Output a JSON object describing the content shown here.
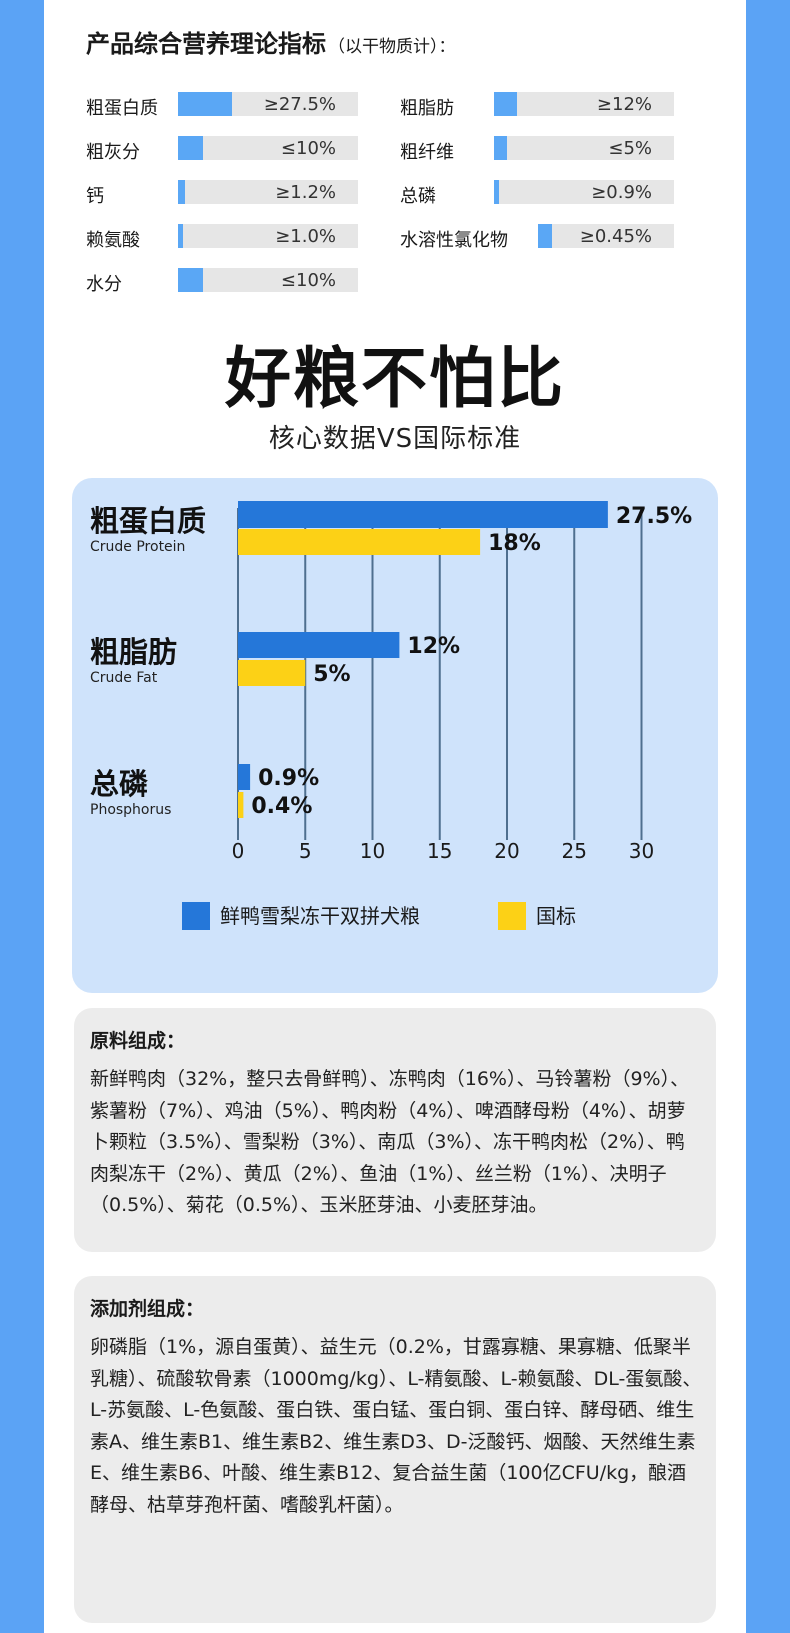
{
  "indicators": {
    "title": "产品综合营养理论指标",
    "subtitle": "（以干物质计）：",
    "items": [
      {
        "label": "粗蛋白质",
        "value": "≥27.5%",
        "level": 0.3
      },
      {
        "label": "粗脂肪",
        "value": "≥12%",
        "level": 0.13
      },
      {
        "label": "粗灰分",
        "value": "≤10%",
        "level": 0.14
      },
      {
        "label": "粗纤维",
        "value": "≤5%",
        "level": 0.07
      },
      {
        "label": "钙",
        "value": "≥1.2%",
        "level": 0.04
      },
      {
        "label": "总磷",
        "value": "≥0.9%",
        "level": 0.03
      },
      {
        "label": "赖氨酸",
        "value": "≥1.0%",
        "level": 0.03
      },
      {
        "label": "水溶性氯化物",
        "value": "≥0.45%",
        "level": 0.1
      },
      {
        "label": "水分",
        "value": "≤10%",
        "level": 0.14
      }
    ]
  },
  "headline": "好粮不怕比",
  "subheadline": "核心数据VS国际标准",
  "chart_data": {
    "type": "bar",
    "orientation": "horizontal",
    "categories": [
      {
        "name": "粗蛋白质",
        "en": "Crude Protein"
      },
      {
        "name": "粗脂肪",
        "en": "Crude Fat"
      },
      {
        "name": "总磷",
        "en": "Phosphorus"
      }
    ],
    "series": [
      {
        "name": "鲜鸭雪梨冻干双拼犬粮",
        "values": [
          27.5,
          12,
          0.9
        ],
        "labels": [
          "27.5%",
          "12%",
          "0.9%"
        ],
        "color": "#2577d9"
      },
      {
        "name": "国标",
        "values": [
          18,
          5,
          0.4
        ],
        "labels": [
          "18%",
          "5%",
          "0.4%"
        ],
        "color": "#fcd116"
      }
    ],
    "xlim": [
      0,
      30
    ],
    "xticks": [
      0,
      5,
      10,
      15,
      20,
      25,
      30
    ],
    "grid": true,
    "legend": "bottom"
  },
  "ingredients": {
    "title": "原料组成：",
    "text": "新鲜鸭肉（32%，整只去骨鲜鸭）、冻鸭肉（16%）、马铃薯粉（9%）、紫薯粉（7%）、鸡油（5%）、鸭肉粉（4%）、啤酒酵母粉（4%）、胡萝卜颗粒（3.5%）、雪梨粉（3%）、南瓜（3%）、冻干鸭肉松（2%）、鸭肉梨冻干（2%）、黄瓜（2%）、鱼油（1%）、丝兰粉（1%）、决明子（0.5%）、菊花（0.5%）、玉米胚芽油、小麦胚芽油。"
  },
  "additives": {
    "title": "添加剂组成：",
    "text": "卵磷脂（1%，源自蛋黄）、益生元（0.2%，甘露寡糖、果寡糖、低聚半乳糖）、硫酸软骨素（1000mg/kg）、L-精氨酸、L-赖氨酸、DL-蛋氨酸、L-苏氨酸、L-色氨酸、蛋白铁、蛋白锰、蛋白铜、蛋白锌、酵母硒、维生素A、维生素B1、维生素B2、维生素D3、D-泛酸钙、烟酸、天然维生素E、维生素B6、叶酸、维生素B12、复合益生菌（100亿CFU/kg，酿酒酵母、枯草芽孢杆菌、嗜酸乳杆菌）。"
  }
}
